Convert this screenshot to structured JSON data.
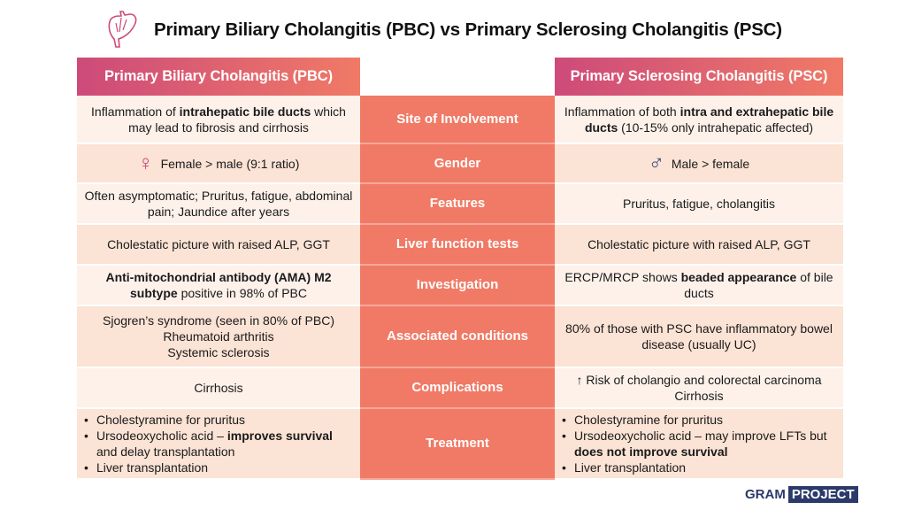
{
  "title": "Primary Biliary Cholangitis (PBC) vs Primary Sclerosing Cholangitis (PSC)",
  "headers": {
    "left": "Primary Biliary Cholangitis (PBC)",
    "right": "Primary Sclerosing Cholangitis (PSC)"
  },
  "rows": [
    {
      "label": "Site of Involvement",
      "pbc": {
        "a": "Inflammation of ",
        "b": "intrahepatic bile ducts",
        "c": " which may lead to fibrosis and cirrhosis"
      },
      "psc": {
        "a": "Inflammation of both ",
        "b": "intra and extrahepatic bile ducts",
        "c": " (10-15% only intrahepatic affected)"
      }
    },
    {
      "label": "Gender",
      "pbc": {
        "symbol": "♀",
        "text": "Female > male (9:1 ratio)"
      },
      "psc": {
        "symbol": "♂",
        "text": "Male > female"
      }
    },
    {
      "label": "Features",
      "pbc": {
        "text": "Often asymptomatic; Pruritus, fatigue, abdominal pain; Jaundice after years"
      },
      "psc": {
        "text": "Pruritus, fatigue, cholangitis"
      }
    },
    {
      "label": "Liver function tests",
      "pbc": {
        "text": "Cholestatic picture with raised ALP, GGT"
      },
      "psc": {
        "text": "Cholestatic picture with raised ALP, GGT"
      }
    },
    {
      "label": "Investigation",
      "pbc": {
        "b": "Anti-mitochondrial antibody (AMA) M2 subtype",
        "c": " positive in 98% of PBC"
      },
      "psc": {
        "a": "ERCP/MRCP shows ",
        "b": "beaded appearance",
        "c": " of bile ducts"
      }
    },
    {
      "label": "Associated conditions",
      "pbc": {
        "lines": [
          "Sjogren’s syndrome (seen in 80% of PBC)",
          "Rheumatoid arthritis",
          "Systemic sclerosis"
        ]
      },
      "psc": {
        "text": "80% of those with PSC have inflammatory bowel disease (usually UC)"
      }
    },
    {
      "label": "Complications",
      "pbc": {
        "text": "Cirrhosis"
      },
      "psc": {
        "lines": [
          "↑ Risk of cholangio and colorectal carcinoma",
          "Cirrhosis"
        ]
      }
    },
    {
      "label": "Treatment",
      "pbc": {
        "b1": "Cholestyramine for pruritus",
        "b2a": "Ursodeoxycholic acid – ",
        "b2b": "improves survival",
        "b2c": " and delay transplantation",
        "b3": "Liver transplantation"
      },
      "psc": {
        "b1": "Cholestyramine for pruritus",
        "b2a": "Ursodeoxycholic acid – may improve LFTs but ",
        "b2b": "does not improve survival",
        "b2c": "",
        "b3": "Liver transplantation"
      }
    }
  ],
  "logo": {
    "part1": "GRAM",
    "part2": "PROJECT"
  },
  "colors": {
    "accent": "#f07a66",
    "gradient_start": "#cd4a7a",
    "navy": "#2b3a6b"
  }
}
